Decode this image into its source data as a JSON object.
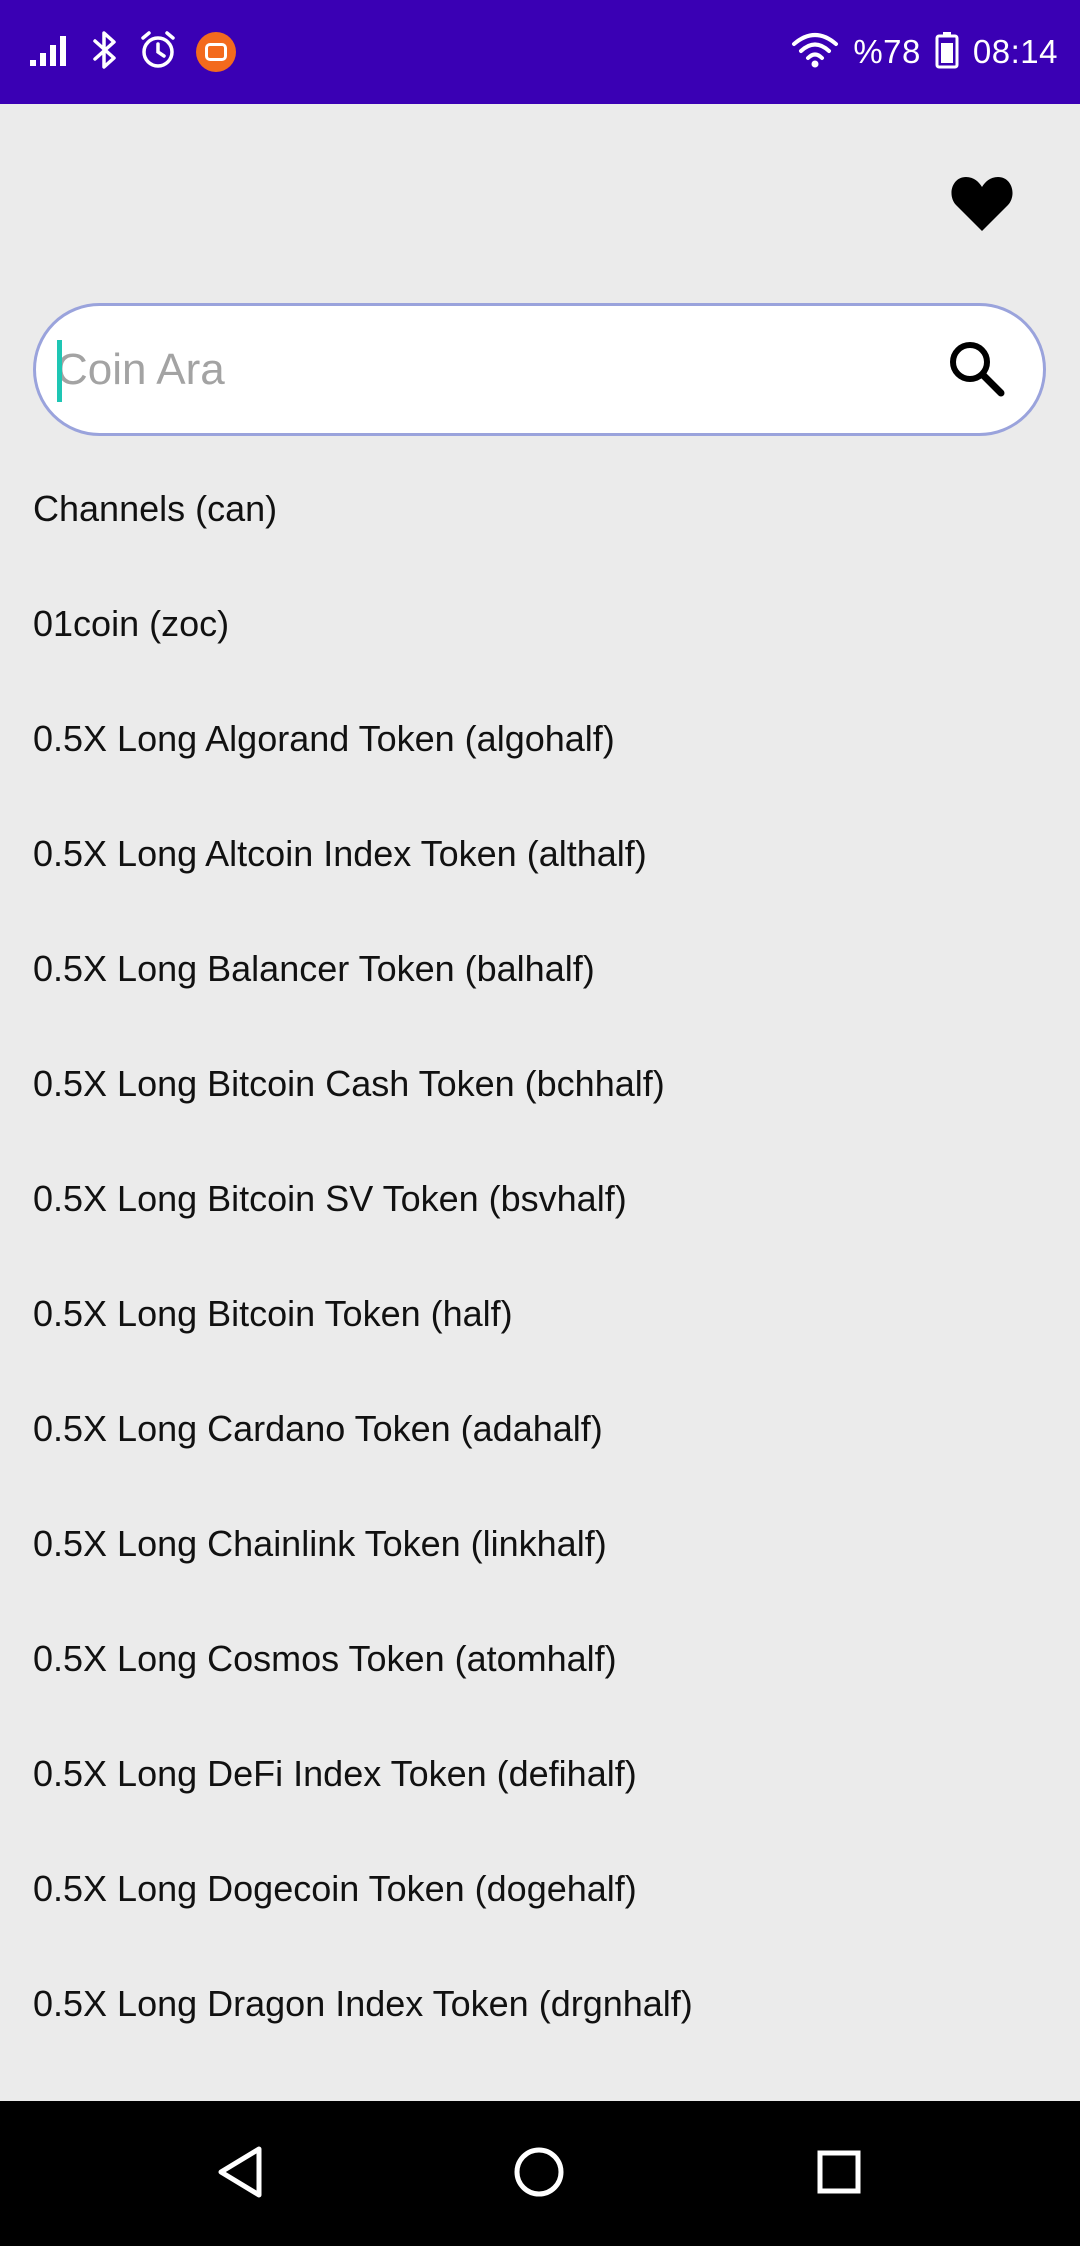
{
  "status_bar": {
    "battery_text": "%78",
    "time": "08:14",
    "left_icons": [
      "signal-icon",
      "bluetooth-icon",
      "alarm-icon",
      "mi-app-icon"
    ],
    "right_icons": [
      "wifi-icon",
      "battery-icon"
    ]
  },
  "header": {
    "favorites_icon": "heart-icon"
  },
  "search": {
    "placeholder": "Coin Ara",
    "value": "",
    "icon": "search-icon"
  },
  "coins": [
    {
      "label": "Channels (can)"
    },
    {
      "label": "01coin (zoc)"
    },
    {
      "label": "0.5X Long Algorand Token (algohalf)"
    },
    {
      "label": "0.5X Long Altcoin Index Token (althalf)"
    },
    {
      "label": "0.5X Long Balancer Token (balhalf)"
    },
    {
      "label": "0.5X Long Bitcoin Cash Token (bchhalf)"
    },
    {
      "label": "0.5X Long Bitcoin SV Token (bsvhalf)"
    },
    {
      "label": "0.5X Long Bitcoin Token (half)"
    },
    {
      "label": "0.5X Long Cardano Token (adahalf)"
    },
    {
      "label": "0.5X Long Chainlink Token (linkhalf)"
    },
    {
      "label": "0.5X Long Cosmos Token (atomhalf)"
    },
    {
      "label": "0.5X Long DeFi Index Token (defihalf)"
    },
    {
      "label": "0.5X Long Dogecoin Token (dogehalf)"
    },
    {
      "label": "0.5X Long Dragon Index Token (drgnhalf)"
    }
  ],
  "nav_bar": {
    "icons": [
      "back-icon",
      "home-icon",
      "recents-icon"
    ]
  },
  "colors": {
    "status_bar": "#3a00b4",
    "background": "#ebebeb",
    "search_border": "#9aa3dc",
    "caret": "#1ec6b4",
    "nav_bar": "#000000"
  }
}
